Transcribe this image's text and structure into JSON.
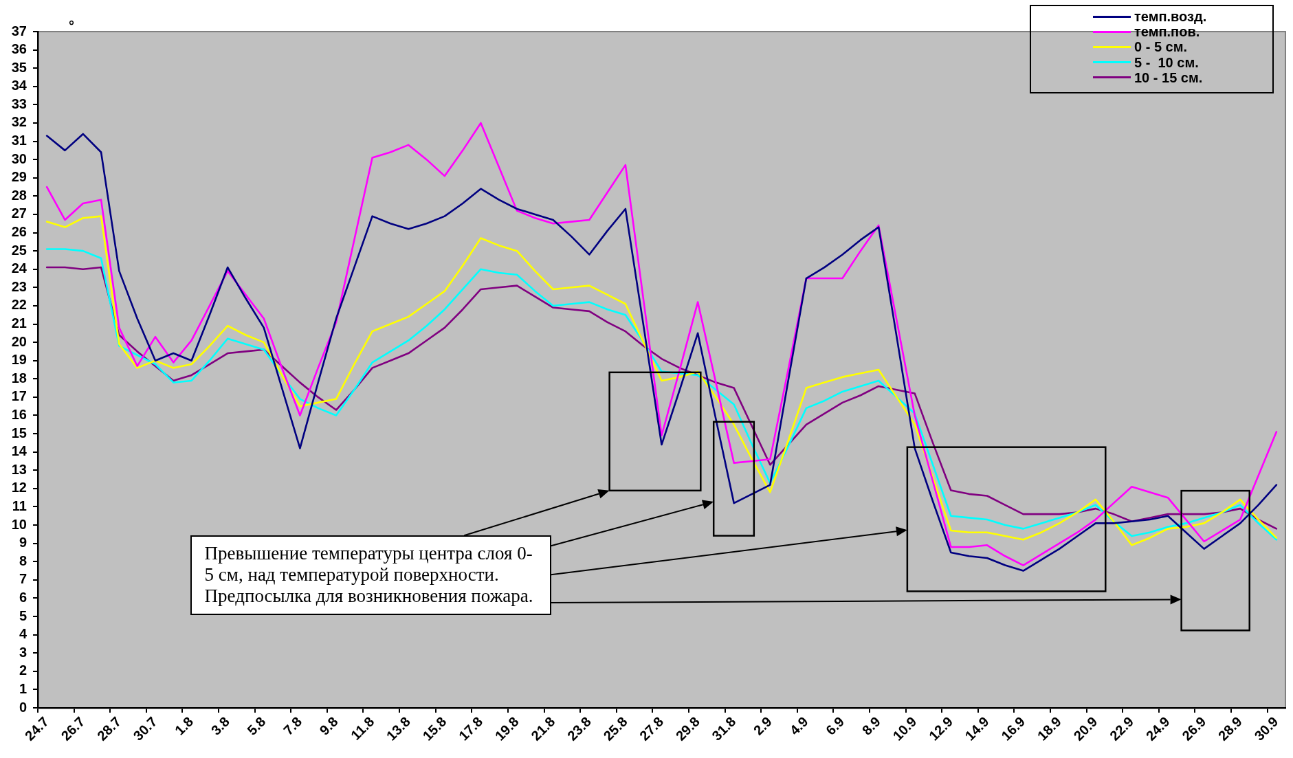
{
  "chart_data": {
    "type": "line",
    "ylabel": "°",
    "categories": [
      "24.7",
      null,
      "26.7",
      null,
      "28.7",
      null,
      "30.7",
      null,
      "1.8",
      null,
      "3.8",
      null,
      "5.8",
      null,
      "7.8",
      null,
      "9.8",
      null,
      "11.8",
      null,
      "13.8",
      null,
      "15.8",
      null,
      "17.8",
      null,
      "19.8",
      null,
      "21.8",
      null,
      "23.8",
      null,
      "25.8",
      null,
      "27.8",
      null,
      "29.8",
      null,
      "31.8",
      null,
      "2.9",
      null,
      "4.9",
      null,
      "6.9",
      null,
      "8.9",
      null,
      "10.9",
      null,
      "12.9",
      null,
      "14.9",
      null,
      "16.9",
      null,
      "18.9",
      null,
      "20.9",
      null,
      "22.9",
      null,
      "24.9",
      null,
      "26.9",
      null,
      "28.9",
      null,
      "30.9"
    ],
    "series": [
      {
        "name": "темп.возд.",
        "color": "#000080",
        "values": [
          31.3,
          30.5,
          31.4,
          30.4,
          23.9,
          21.3,
          19.0,
          19.4,
          19.0,
          21.5,
          24.1,
          22.4,
          20.8,
          17.5,
          14.2,
          17.8,
          21.3,
          24.1,
          26.9,
          26.5,
          26.2,
          26.5,
          26.9,
          27.6,
          28.4,
          27.8,
          27.3,
          27.0,
          26.7,
          25.8,
          24.8,
          26.1,
          27.3,
          20.9,
          14.4,
          17.4,
          20.5,
          15.8,
          11.2,
          11.7,
          12.2,
          17.9,
          23.5,
          24.1,
          24.8,
          25.6,
          26.3,
          20.3,
          14.2,
          11.3,
          8.5,
          8.3,
          8.2,
          7.8,
          7.5,
          8.1,
          8.7,
          9.4,
          10.1,
          10.1,
          10.2,
          10.3,
          10.5,
          9.6,
          8.7,
          9.4,
          10.1,
          11.1,
          12.2
        ]
      },
      {
        "name": "темп.пов.",
        "color": "#ff00ff",
        "values": [
          28.5,
          26.7,
          27.6,
          27.8,
          20.8,
          18.7,
          20.3,
          18.9,
          20.1,
          22.0,
          23.9,
          22.6,
          21.3,
          18.6,
          16.0,
          18.6,
          21.1,
          25.6,
          30.1,
          30.4,
          30.8,
          30.0,
          29.1,
          30.5,
          32.0,
          29.6,
          27.2,
          26.8,
          26.5,
          26.6,
          26.7,
          28.2,
          29.7,
          22.3,
          14.9,
          18.5,
          22.2,
          17.8,
          13.4,
          13.5,
          13.6,
          18.5,
          23.5,
          23.5,
          23.5,
          25.0,
          26.4,
          21.2,
          16.0,
          12.4,
          8.8,
          8.8,
          8.9,
          8.3,
          7.8,
          8.4,
          9.0,
          9.6,
          10.3,
          11.2,
          12.1,
          11.8,
          11.5,
          10.3,
          9.1,
          9.7,
          10.3,
          12.7,
          15.1
        ]
      },
      {
        "name": "0 - 5 см.",
        "color": "#ffff00",
        "values": [
          26.6,
          26.3,
          26.8,
          26.9,
          19.9,
          18.6,
          19.0,
          18.6,
          18.8,
          19.8,
          20.9,
          20.4,
          20.0,
          18.2,
          16.5,
          16.7,
          16.9,
          18.8,
          20.6,
          21.0,
          21.4,
          22.1,
          22.8,
          24.2,
          25.7,
          25.3,
          25.0,
          23.9,
          22.9,
          23.0,
          23.1,
          22.6,
          22.1,
          20.0,
          17.9,
          18.1,
          18.4,
          17.0,
          15.5,
          13.6,
          11.8,
          14.6,
          17.5,
          17.8,
          18.1,
          18.3,
          18.5,
          17.0,
          15.5,
          12.6,
          9.7,
          9.6,
          9.6,
          9.4,
          9.2,
          9.6,
          10.1,
          10.7,
          11.4,
          10.2,
          8.9,
          9.3,
          9.8,
          9.9,
          10.1,
          10.7,
          11.4,
          10.3,
          9.3
        ]
      },
      {
        "name": "5 -  10 см.",
        "color": "#00ffff",
        "values": [
          25.1,
          25.1,
          25.0,
          24.6,
          19.8,
          19.3,
          18.8,
          17.8,
          17.9,
          19.0,
          20.2,
          19.9,
          19.6,
          18.2,
          16.9,
          16.4,
          16.0,
          17.4,
          18.9,
          19.5,
          20.1,
          20.9,
          21.8,
          22.9,
          24.0,
          23.8,
          23.7,
          22.8,
          22.0,
          22.1,
          22.2,
          21.8,
          21.5,
          20.0,
          18.4,
          18.3,
          18.2,
          17.4,
          16.6,
          14.4,
          12.3,
          14.3,
          16.4,
          16.8,
          17.3,
          17.6,
          17.9,
          17.0,
          16.1,
          13.3,
          10.5,
          10.4,
          10.3,
          10.0,
          9.8,
          10.1,
          10.4,
          10.7,
          11.1,
          10.2,
          9.4,
          9.6,
          9.9,
          10.1,
          10.4,
          10.7,
          11.1,
          10.1,
          9.2
        ]
      },
      {
        "name": "10 - 15 см.",
        "color": "#800080",
        "values": [
          24.1,
          24.1,
          24.0,
          24.1,
          20.4,
          19.5,
          18.7,
          17.9,
          18.2,
          18.8,
          19.4,
          19.5,
          19.6,
          18.7,
          17.8,
          17.0,
          16.3,
          17.4,
          18.6,
          19.0,
          19.4,
          20.1,
          20.8,
          21.8,
          22.9,
          23.0,
          23.1,
          22.5,
          21.9,
          21.8,
          21.7,
          21.1,
          20.6,
          19.8,
          19.1,
          18.6,
          18.2,
          17.8,
          17.5,
          15.4,
          13.3,
          14.4,
          15.5,
          16.1,
          16.7,
          17.1,
          17.6,
          17.4,
          17.2,
          14.5,
          11.9,
          11.7,
          11.6,
          11.1,
          10.6,
          10.6,
          10.6,
          10.7,
          10.9,
          10.6,
          10.2,
          10.4,
          10.6,
          10.6,
          10.6,
          10.7,
          10.9,
          10.3,
          9.8
        ]
      }
    ],
    "ylim": [
      0,
      37
    ],
    "yticks": [
      0,
      1,
      2,
      3,
      4,
      5,
      6,
      7,
      8,
      9,
      10,
      11,
      12,
      13,
      14,
      15,
      16,
      17,
      18,
      19,
      20,
      21,
      22,
      23,
      24,
      25,
      26,
      27,
      28,
      29,
      30,
      31,
      32,
      33,
      34,
      35,
      36,
      37
    ],
    "legend": "top right",
    "annotations": [
      "Превышение температуры центра слоя 0-5 см, над температурой поверхности. Предпосылка для возникновения пожара."
    ]
  }
}
